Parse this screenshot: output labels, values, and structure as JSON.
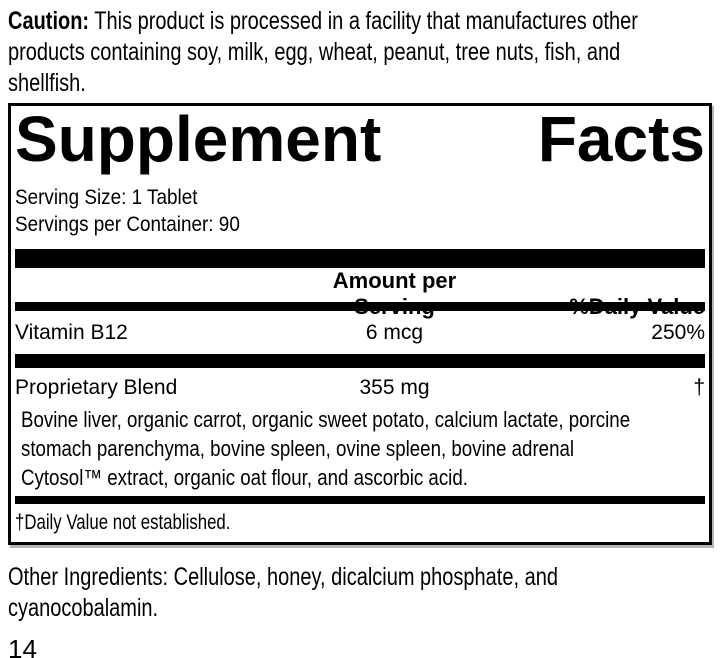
{
  "caution": {
    "label": "Caution:",
    "text": " This product is processed in a facility that manufactures other\nproducts containing soy, milk, egg, wheat, peanut, tree nuts, fish, and\nshellfish."
  },
  "panel": {
    "title_word1": "Supplement",
    "title_word2": "Facts",
    "serving_info": "Serving Size: 1 Tablet\nServings per Container: 90",
    "columns": {
      "amount": "Amount per Serving",
      "dv": "%Daily Value"
    },
    "rows": [
      {
        "name": "Vitamin B12",
        "amount": "6 mcg",
        "dv": "250%"
      },
      {
        "name": "Proprietary Blend",
        "amount": "355 mg",
        "dv": "†",
        "description": "Bovine liver, organic carrot, organic sweet potato, calcium lactate, porcine\nstomach parenchyma, bovine spleen, ovine spleen, bovine adrenal\nCytosol™ extract, organic oat flour, and ascorbic acid."
      }
    ],
    "footnote": "†Daily Value not established."
  },
  "other_ingredients": "Other Ingredients: Cellulose, honey, dicalcium phosphate, and\ncyanocobalamin.",
  "page_number": "14",
  "colors": {
    "ink": "#000000",
    "paper": "#ffffff",
    "panel_shadow": "#b4b4b4"
  }
}
